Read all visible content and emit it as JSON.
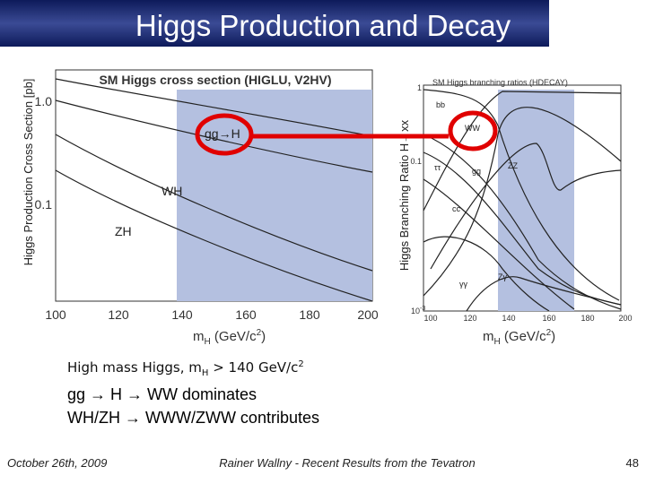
{
  "header": {
    "title": "Higgs Production and Decay"
  },
  "plots": [
    {
      "title": "SM Higgs cross section (HIGLU, V2HV)",
      "y_label": "Higgs Production Cross Section [pb]",
      "y_ticks": [
        [
          "1.0"
        ],
        [
          "0.1"
        ]
      ],
      "x_ticks": [
        "100",
        "120",
        "140",
        "160",
        "180",
        "200"
      ],
      "x_label": [
        "m",
        "H",
        " (GeV/c",
        "2",
        ")"
      ],
      "curve_labels": [
        "gg→H",
        "WH",
        "ZH"
      ]
    },
    {
      "title": "SM Higgs branching ratios (HDECAY)",
      "y_label": "Higgs Branching Ratio H→xx",
      "y_ticks": [
        [
          "1"
        ],
        [
          "0.1"
        ],
        [
          "10",
          "-3"
        ]
      ],
      "x_ticks": [
        "100",
        "120",
        "140",
        "160",
        "180",
        "200"
      ],
      "x_label": [
        "m",
        "H",
        " (GeV/c",
        "2",
        ")"
      ],
      "curve_labels": [
        "bb",
        "WW",
        "ττ",
        "gg",
        "ZZ",
        "cc",
        "γγ",
        "Zγ"
      ]
    }
  ],
  "body": {
    "lines": [
      [
        "High mass Higgs, m",
        "H",
        " > 140 GeV/c",
        "2"
      ],
      [
        "gg → H → WW dominates"
      ],
      [
        "WH/ZH → WWW/ZWW contributes"
      ]
    ]
  },
  "footer": {
    "date": "October 26th, 2009",
    "presenter": "Rainer Wallny - Recent Results from the Tevatron",
    "page": "48"
  }
}
